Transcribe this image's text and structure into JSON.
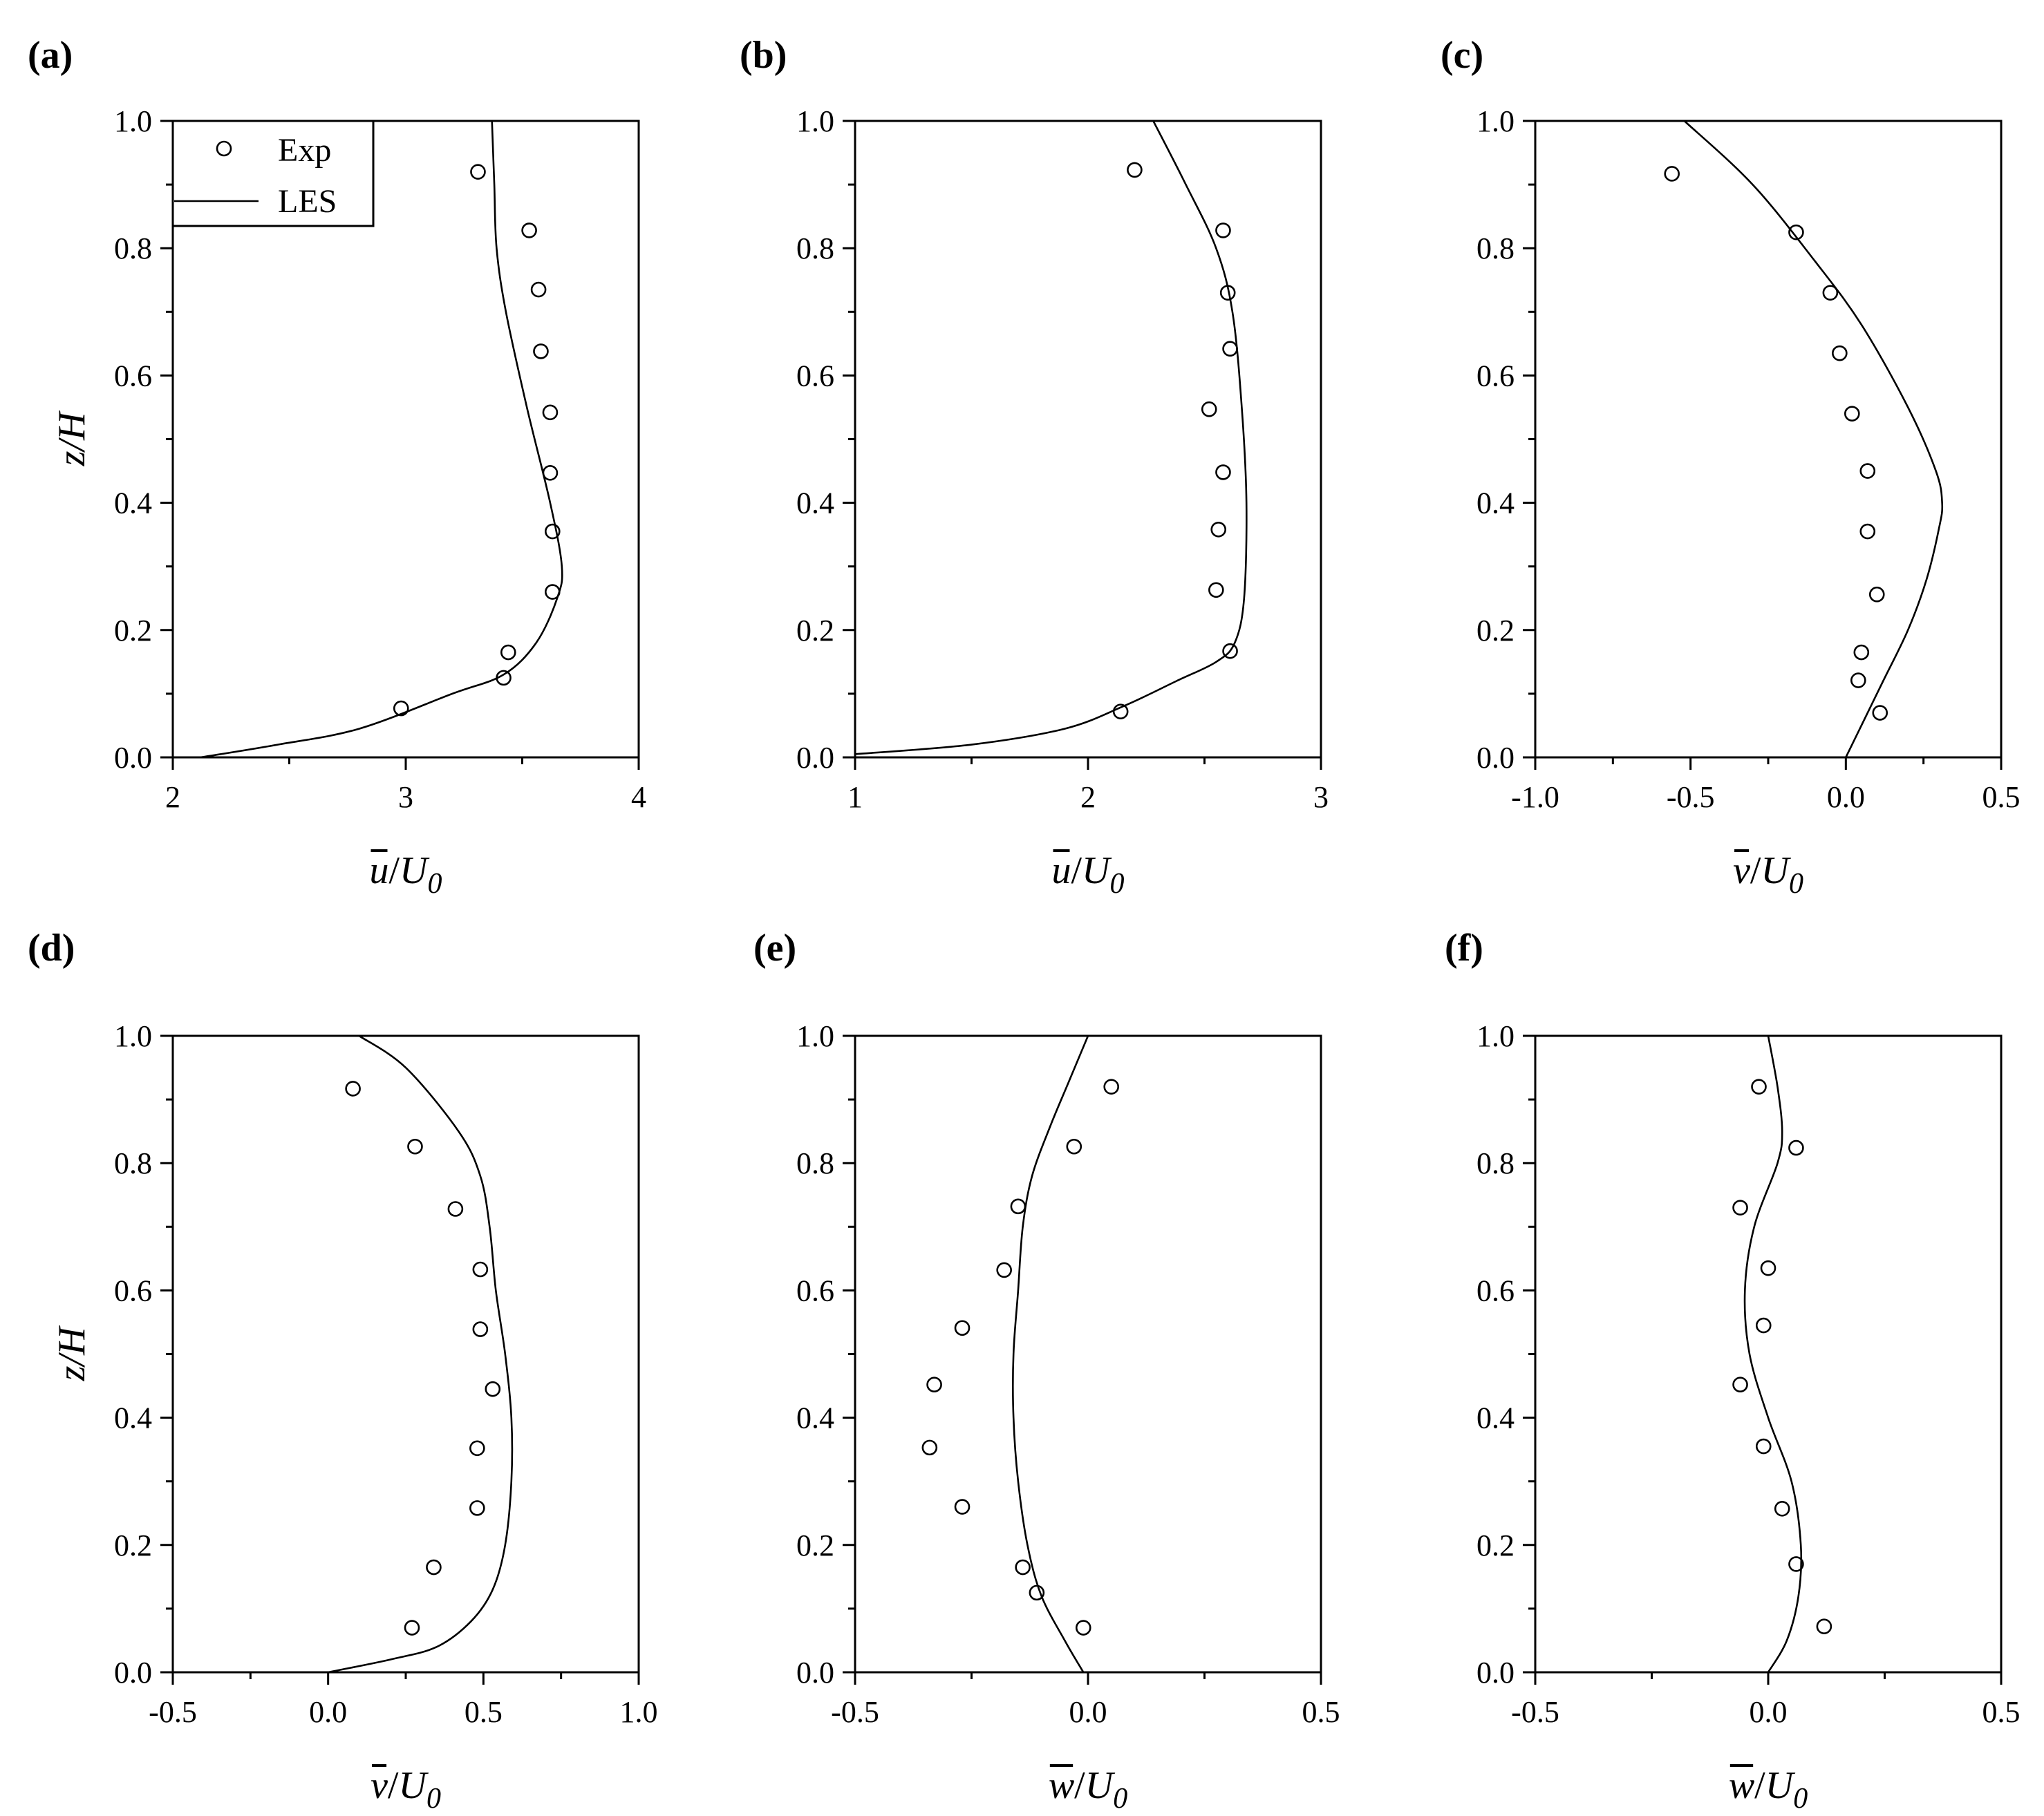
{
  "chart_data": [
    {
      "panel": "(a)",
      "type": "line",
      "xlabel": {
        "var": "u",
        "den": "U",
        "sub": "0"
      },
      "ylabel": "z/H",
      "xlim": [
        2,
        4
      ],
      "ylim": [
        0,
        1
      ],
      "xticks": [
        2,
        3,
        4
      ],
      "xtick_labels": [
        "2",
        "3",
        "4"
      ],
      "yticks": [
        0,
        0.2,
        0.4,
        0.6,
        0.8,
        1.0
      ],
      "ytick_labels": [
        "0.0",
        "0.2",
        "0.4",
        "0.6",
        "0.8",
        "1.0"
      ],
      "legend": {
        "placement": "top-left",
        "entries": [
          "Exp",
          "LES"
        ]
      },
      "series": [
        {
          "name": "Exp",
          "style": "markers",
          "points": [
            [
              3.31,
              0.92
            ],
            [
              3.53,
              0.828
            ],
            [
              3.57,
              0.735
            ],
            [
              3.58,
              0.638
            ],
            [
              3.62,
              0.542
            ],
            [
              3.62,
              0.447
            ],
            [
              3.63,
              0.355
            ],
            [
              3.63,
              0.26
            ],
            [
              3.44,
              0.165
            ],
            [
              3.42,
              0.125
            ],
            [
              2.98,
              0.077
            ]
          ]
        },
        {
          "name": "LES",
          "style": "line",
          "points": [
            [
              2.12,
              0.0
            ],
            [
              2.45,
              0.02
            ],
            [
              2.8,
              0.045
            ],
            [
              3.2,
              0.1
            ],
            [
              3.42,
              0.13
            ],
            [
              3.56,
              0.18
            ],
            [
              3.65,
              0.25
            ],
            [
              3.67,
              0.3
            ],
            [
              3.62,
              0.4
            ],
            [
              3.52,
              0.55
            ],
            [
              3.43,
              0.7
            ],
            [
              3.39,
              0.8
            ],
            [
              3.38,
              0.9
            ],
            [
              3.37,
              1.0
            ]
          ]
        }
      ]
    },
    {
      "panel": "(b)",
      "type": "line",
      "xlabel": {
        "var": "u",
        "den": "U",
        "sub": "0"
      },
      "ylabel": "",
      "xlim": [
        1,
        3
      ],
      "ylim": [
        0,
        1
      ],
      "xticks": [
        1,
        2,
        3
      ],
      "xtick_labels": [
        "1",
        "2",
        "3"
      ],
      "yticks": [
        0,
        0.2,
        0.4,
        0.6,
        0.8,
        1.0
      ],
      "ytick_labels": [
        "0.0",
        "0.2",
        "0.4",
        "0.6",
        "0.8",
        "1.0"
      ],
      "series": [
        {
          "name": "Exp",
          "style": "markers",
          "points": [
            [
              2.2,
              0.923
            ],
            [
              2.58,
              0.828
            ],
            [
              2.6,
              0.73
            ],
            [
              2.61,
              0.642
            ],
            [
              2.52,
              0.547
            ],
            [
              2.58,
              0.448
            ],
            [
              2.56,
              0.358
            ],
            [
              2.55,
              0.263
            ],
            [
              2.61,
              0.167
            ],
            [
              2.14,
              0.072
            ]
          ]
        },
        {
          "name": "LES",
          "style": "line",
          "points": [
            [
              1.0,
              0.005
            ],
            [
              1.5,
              0.02
            ],
            [
              1.9,
              0.045
            ],
            [
              2.15,
              0.08
            ],
            [
              2.38,
              0.12
            ],
            [
              2.55,
              0.15
            ],
            [
              2.63,
              0.18
            ],
            [
              2.67,
              0.25
            ],
            [
              2.68,
              0.4
            ],
            [
              2.66,
              0.55
            ],
            [
              2.62,
              0.7
            ],
            [
              2.55,
              0.8
            ],
            [
              2.42,
              0.9
            ],
            [
              2.28,
              1.0
            ]
          ]
        }
      ]
    },
    {
      "panel": "(c)",
      "type": "line",
      "xlabel": {
        "var": "v",
        "den": "U",
        "sub": "0"
      },
      "ylabel": "",
      "xlim": [
        -1.0,
        0.5
      ],
      "ylim": [
        0,
        1
      ],
      "xticks": [
        -1.0,
        -0.5,
        0.0,
        0.5
      ],
      "xtick_labels": [
        "-1.0",
        "-0.5",
        "0.0",
        "0.5"
      ],
      "yticks": [
        0,
        0.2,
        0.4,
        0.6,
        0.8,
        1.0
      ],
      "ytick_labels": [
        "0.0",
        "0.2",
        "0.4",
        "0.6",
        "0.8",
        "1.0"
      ],
      "series": [
        {
          "name": "Exp",
          "style": "markers",
          "points": [
            [
              -0.56,
              0.917
            ],
            [
              -0.16,
              0.825
            ],
            [
              -0.05,
              0.73
            ],
            [
              -0.02,
              0.635
            ],
            [
              0.02,
              0.54
            ],
            [
              0.07,
              0.45
            ],
            [
              0.07,
              0.355
            ],
            [
              0.1,
              0.256
            ],
            [
              0.05,
              0.165
            ],
            [
              0.04,
              0.121
            ],
            [
              0.11,
              0.07
            ]
          ]
        },
        {
          "name": "LES",
          "style": "line",
          "points": [
            [
              0.0,
              0.0
            ],
            [
              0.05,
              0.05
            ],
            [
              0.12,
              0.12
            ],
            [
              0.2,
              0.2
            ],
            [
              0.26,
              0.28
            ],
            [
              0.3,
              0.36
            ],
            [
              0.31,
              0.4
            ],
            [
              0.29,
              0.45
            ],
            [
              0.2,
              0.55
            ],
            [
              0.05,
              0.68
            ],
            [
              -0.1,
              0.78
            ],
            [
              -0.3,
              0.9
            ],
            [
              -0.52,
              1.0
            ]
          ]
        }
      ]
    },
    {
      "panel": "(d)",
      "type": "line",
      "xlabel": {
        "var": "v",
        "den": "U",
        "sub": "0"
      },
      "ylabel": "z/H",
      "xlim": [
        -0.5,
        1.0
      ],
      "ylim": [
        0,
        1
      ],
      "xticks": [
        -0.5,
        0.0,
        0.5,
        1.0
      ],
      "xtick_labels": [
        "-0.5",
        "0.0",
        "0.5",
        "1.0"
      ],
      "yticks": [
        0,
        0.2,
        0.4,
        0.6,
        0.8,
        1.0
      ],
      "ytick_labels": [
        "0.0",
        "0.2",
        "0.4",
        "0.6",
        "0.8",
        "1.0"
      ],
      "series": [
        {
          "name": "Exp",
          "style": "markers",
          "points": [
            [
              0.08,
              0.917
            ],
            [
              0.28,
              0.826
            ],
            [
              0.41,
              0.728
            ],
            [
              0.49,
              0.633
            ],
            [
              0.49,
              0.539
            ],
            [
              0.53,
              0.445
            ],
            [
              0.48,
              0.352
            ],
            [
              0.48,
              0.258
            ],
            [
              0.34,
              0.165
            ],
            [
              0.27,
              0.07
            ]
          ]
        },
        {
          "name": "LES",
          "style": "line",
          "points": [
            [
              0.0,
              0.0
            ],
            [
              0.2,
              0.02
            ],
            [
              0.35,
              0.04
            ],
            [
              0.46,
              0.08
            ],
            [
              0.53,
              0.13
            ],
            [
              0.57,
              0.2
            ],
            [
              0.59,
              0.3
            ],
            [
              0.59,
              0.4
            ],
            [
              0.57,
              0.5
            ],
            [
              0.54,
              0.6
            ],
            [
              0.52,
              0.7
            ],
            [
              0.49,
              0.78
            ],
            [
              0.42,
              0.85
            ],
            [
              0.25,
              0.95
            ],
            [
              0.1,
              1.0
            ]
          ]
        }
      ]
    },
    {
      "panel": "(e)",
      "type": "line",
      "xlabel": {
        "var": "w",
        "den": "U",
        "sub": "0"
      },
      "ylabel": "",
      "xlim": [
        -0.5,
        0.5
      ],
      "ylim": [
        0,
        1
      ],
      "xticks": [
        -0.5,
        0.0,
        0.5
      ],
      "xtick_labels": [
        "-0.5",
        "0.0",
        "0.5"
      ],
      "yticks": [
        0,
        0.2,
        0.4,
        0.6,
        0.8,
        1.0
      ],
      "ytick_labels": [
        "0.0",
        "0.2",
        "0.4",
        "0.6",
        "0.8",
        "1.0"
      ],
      "series": [
        {
          "name": "Exp",
          "style": "markers",
          "points": [
            [
              0.05,
              0.92
            ],
            [
              -0.03,
              0.826
            ],
            [
              -0.15,
              0.732
            ],
            [
              -0.18,
              0.632
            ],
            [
              -0.27,
              0.541
            ],
            [
              -0.33,
              0.452
            ],
            [
              -0.34,
              0.353
            ],
            [
              -0.27,
              0.26
            ],
            [
              -0.14,
              0.165
            ],
            [
              -0.11,
              0.125
            ],
            [
              -0.01,
              0.07
            ]
          ]
        },
        {
          "name": "LES",
          "style": "line",
          "points": [
            [
              -0.01,
              0.0
            ],
            [
              -0.05,
              0.05
            ],
            [
              -0.1,
              0.12
            ],
            [
              -0.13,
              0.2
            ],
            [
              -0.15,
              0.3
            ],
            [
              -0.16,
              0.4
            ],
            [
              -0.16,
              0.5
            ],
            [
              -0.15,
              0.6
            ],
            [
              -0.14,
              0.7
            ],
            [
              -0.12,
              0.78
            ],
            [
              -0.08,
              0.86
            ],
            [
              -0.04,
              0.93
            ],
            [
              0.0,
              1.0
            ]
          ]
        }
      ]
    },
    {
      "panel": "(f)",
      "type": "line",
      "xlabel": {
        "var": "w",
        "den": "U",
        "sub": "0"
      },
      "ylabel": "",
      "xlim": [
        -0.5,
        0.5
      ],
      "ylim": [
        0,
        1
      ],
      "xticks": [
        -0.5,
        0.0,
        0.5
      ],
      "xtick_labels": [
        "-0.5",
        "0.0",
        "0.5"
      ],
      "yticks": [
        0,
        0.2,
        0.4,
        0.6,
        0.8,
        1.0
      ],
      "ytick_labels": [
        "0.0",
        "0.2",
        "0.4",
        "0.6",
        "0.8",
        "1.0"
      ],
      "series": [
        {
          "name": "Exp",
          "style": "markers",
          "points": [
            [
              -0.02,
              0.92
            ],
            [
              0.06,
              0.824
            ],
            [
              -0.06,
              0.73
            ],
            [
              0.0,
              0.635
            ],
            [
              -0.01,
              0.545
            ],
            [
              -0.06,
              0.452
            ],
            [
              -0.01,
              0.355
            ],
            [
              0.03,
              0.257
            ],
            [
              0.06,
              0.17
            ],
            [
              0.12,
              0.072
            ]
          ]
        },
        {
          "name": "LES",
          "style": "line",
          "points": [
            [
              0.0,
              0.0
            ],
            [
              0.04,
              0.05
            ],
            [
              0.065,
              0.12
            ],
            [
              0.07,
              0.2
            ],
            [
              0.05,
              0.3
            ],
            [
              0.0,
              0.4
            ],
            [
              -0.04,
              0.5
            ],
            [
              -0.05,
              0.6
            ],
            [
              -0.03,
              0.7
            ],
            [
              0.02,
              0.8
            ],
            [
              0.03,
              0.85
            ],
            [
              0.02,
              0.92
            ],
            [
              0.0,
              1.0
            ]
          ]
        }
      ]
    }
  ]
}
